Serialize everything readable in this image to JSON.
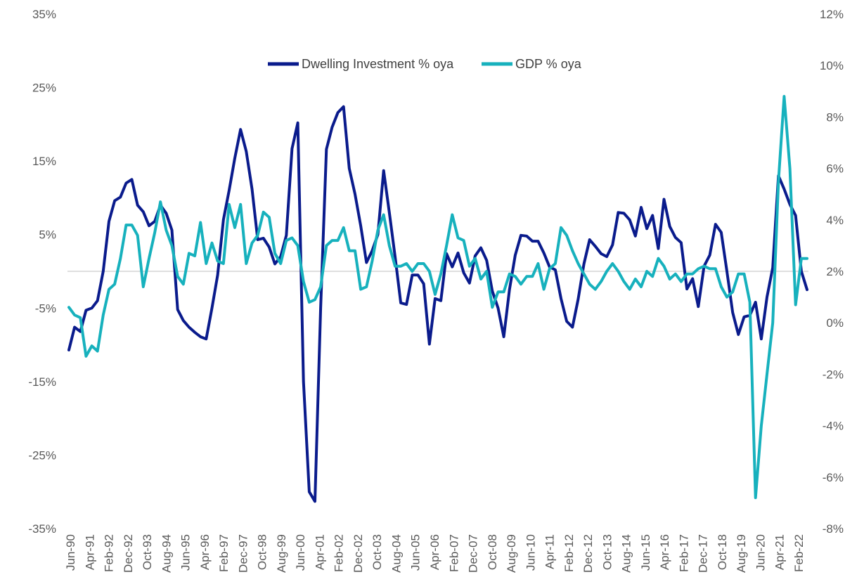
{
  "chart_data": {
    "type": "line",
    "title": "",
    "legend_position": "top-center",
    "left_axis": {
      "ylim": [
        -35,
        35
      ],
      "ticks": [
        35,
        25,
        15,
        5,
        -5,
        -15,
        -25,
        -35
      ],
      "tick_labels": [
        "35%",
        "25%",
        "15%",
        "5%",
        "-5%",
        "-15%",
        "-25%",
        "-35%"
      ]
    },
    "right_axis": {
      "ylim": [
        -8,
        12
      ],
      "ticks": [
        12,
        10,
        8,
        6,
        4,
        2,
        0,
        -2,
        -4,
        -6,
        -8
      ],
      "tick_labels": [
        "12%",
        "10%",
        "8%",
        "6%",
        "4%",
        "2%",
        "0%",
        "-2%",
        "-4%",
        "-6%",
        "-8%"
      ]
    },
    "x_tick_labels": [
      "Jun-90",
      "Apr-91",
      "Feb-92",
      "Dec-92",
      "Oct-93",
      "Aug-94",
      "Jun-95",
      "Apr-96",
      "Feb-97",
      "Dec-97",
      "Oct-98",
      "Aug-99",
      "Jun-00",
      "Apr-01",
      "Feb-02",
      "Dec-02",
      "Oct-03",
      "Aug-04",
      "Jun-05",
      "Apr-06",
      "Feb-07",
      "Dec-07",
      "Oct-08",
      "Aug-09",
      "Jun-10",
      "Apr-11",
      "Feb-12",
      "Dec-12",
      "Oct-13",
      "Aug-14",
      "Jun-15",
      "Apr-16",
      "Feb-17",
      "Dec-17",
      "Oct-18",
      "Aug-19",
      "Jun-20",
      "Apr-21",
      "Feb-22"
    ],
    "series": [
      {
        "name": "Dwelling Investment % oya",
        "axis": "left",
        "color": "#0a1b8c",
        "start": "Jun-90",
        "end": "May-22",
        "values": [
          -10.7,
          -7.6,
          -8.2,
          -5.3,
          -5.0,
          -4.0,
          0.0,
          6.8,
          9.6,
          10.1,
          12.0,
          12.5,
          9.0,
          8.1,
          6.2,
          6.8,
          9.0,
          7.9,
          5.6,
          -5.2,
          -6.7,
          -7.6,
          -8.3,
          -8.9,
          -9.2,
          -5.0,
          -0.5,
          7.0,
          11.0,
          15.4,
          19.3,
          16.3,
          11.2,
          4.3,
          4.5,
          3.3,
          1.0,
          2.0,
          4.9,
          16.7,
          20.2,
          -15.0,
          -30.0,
          -31.3,
          -5.0,
          16.6,
          19.6,
          21.6,
          22.4,
          14.0,
          10.5,
          6.2,
          1.2,
          2.8,
          5.0,
          13.7,
          8.0,
          2.0,
          -4.3,
          -4.5,
          -0.5,
          -0.5,
          -1.7,
          -9.9,
          -3.7,
          -4.0,
          2.4,
          0.6,
          2.5,
          -0.2,
          -1.6,
          2.1,
          3.2,
          1.5,
          -2.7,
          -5.0,
          -8.9,
          -2.5,
          2.2,
          4.9,
          4.8,
          4.1,
          4.1,
          2.5,
          0.6,
          0.2,
          -3.7,
          -6.8,
          -7.6,
          -3.8,
          1.0,
          4.3,
          3.4,
          2.4,
          2.0,
          3.6,
          8.0,
          7.9,
          7.0,
          4.8,
          8.7,
          5.8,
          7.6,
          3.1,
          9.8,
          6.1,
          4.6,
          3.9,
          -2.4,
          -1.0,
          -4.8,
          0.7,
          2.2,
          6.4,
          5.3,
          0.0,
          -5.6,
          -8.6,
          -6.2,
          -6.0,
          -4.2,
          -9.2,
          -3.5,
          0.5,
          13.0,
          11.2,
          9.1,
          7.6,
          0.0,
          -2.5
        ]
      },
      {
        "name": "GDP % oya",
        "axis": "right",
        "color": "#17b1bd",
        "start": "Jun-90",
        "end": "May-22",
        "values": [
          0.6,
          0.3,
          0.2,
          -1.3,
          -0.9,
          -1.1,
          0.3,
          1.3,
          1.5,
          2.5,
          3.8,
          3.8,
          3.4,
          1.4,
          2.5,
          3.5,
          4.7,
          3.6,
          3.0,
          1.8,
          1.5,
          2.7,
          2.6,
          3.9,
          2.3,
          3.1,
          2.4,
          2.3,
          4.6,
          3.7,
          4.6,
          2.3,
          3.1,
          3.4,
          4.3,
          4.1,
          2.7,
          2.3,
          3.2,
          3.3,
          3.0,
          1.6,
          0.8,
          0.9,
          1.4,
          3.0,
          3.2,
          3.2,
          3.7,
          2.8,
          2.8,
          1.3,
          1.4,
          2.4,
          3.6,
          4.2,
          3.0,
          2.2,
          2.2,
          2.3,
          2.0,
          2.3,
          2.3,
          2.0,
          1.1,
          1.9,
          3.0,
          4.2,
          3.3,
          3.2,
          2.2,
          2.5,
          1.7,
          2.0,
          0.6,
          1.2,
          1.2,
          1.9,
          1.8,
          1.5,
          1.8,
          1.8,
          2.3,
          1.3,
          2.1,
          2.3,
          3.7,
          3.4,
          2.8,
          2.3,
          1.9,
          1.5,
          1.3,
          1.6,
          2.0,
          2.3,
          2.0,
          1.6,
          1.3,
          1.7,
          1.4,
          2.0,
          1.8,
          2.5,
          2.2,
          1.7,
          1.9,
          1.6,
          1.9,
          1.9,
          2.1,
          2.2,
          2.1,
          2.1,
          1.4,
          1.0,
          1.2,
          1.9,
          1.9,
          0.8,
          -6.8,
          -4.0,
          -2.0,
          0.0,
          5.5,
          8.8,
          6.0,
          0.7,
          2.5,
          2.5
        ]
      }
    ]
  }
}
